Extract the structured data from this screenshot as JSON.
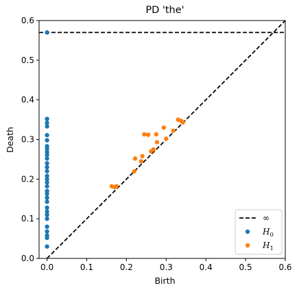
{
  "chart_data": {
    "type": "scatter",
    "title": "PD 'the'",
    "xlabel": "Birth",
    "ylabel": "Death",
    "xlim": [
      -0.02,
      0.6
    ],
    "ylim": [
      0.0,
      0.6
    ],
    "xticks": [
      "0.0",
      "0.1",
      "0.2",
      "0.3",
      "0.4",
      "0.5",
      "0.6"
    ],
    "yticks": [
      "0.0",
      "0.1",
      "0.2",
      "0.3",
      "0.4",
      "0.5",
      "0.6"
    ],
    "infinity_death": 0.57,
    "legend_position": "lower-right",
    "series": [
      {
        "name": "H0",
        "legend_base": "H",
        "legend_sub": "0",
        "color": "#1f77b4",
        "points": [
          [
            0.0,
            0.57
          ],
          [
            0.0,
            0.352
          ],
          [
            0.0,
            0.342
          ],
          [
            0.0,
            0.333
          ],
          [
            0.0,
            0.311
          ],
          [
            0.0,
            0.298
          ],
          [
            0.0,
            0.283
          ],
          [
            0.0,
            0.276
          ],
          [
            0.0,
            0.268
          ],
          [
            0.0,
            0.261
          ],
          [
            0.0,
            0.252
          ],
          [
            0.0,
            0.24
          ],
          [
            0.0,
            0.23
          ],
          [
            0.0,
            0.22
          ],
          [
            0.0,
            0.208
          ],
          [
            0.0,
            0.2
          ],
          [
            0.0,
            0.192
          ],
          [
            0.0,
            0.182
          ],
          [
            0.0,
            0.17
          ],
          [
            0.0,
            0.163
          ],
          [
            0.0,
            0.153
          ],
          [
            0.0,
            0.143
          ],
          [
            0.0,
            0.128
          ],
          [
            0.0,
            0.118
          ],
          [
            0.0,
            0.11
          ],
          [
            0.0,
            0.1
          ],
          [
            0.0,
            0.08
          ],
          [
            0.0,
            0.068
          ],
          [
            0.0,
            0.058
          ],
          [
            0.0,
            0.052
          ],
          [
            0.0,
            0.03
          ]
        ]
      },
      {
        "name": "H1",
        "legend_base": "H",
        "legend_sub": "1",
        "color": "#ff7f0e",
        "points": [
          [
            0.163,
            0.182
          ],
          [
            0.17,
            0.18
          ],
          [
            0.175,
            0.182
          ],
          [
            0.22,
            0.22
          ],
          [
            0.222,
            0.252
          ],
          [
            0.237,
            0.245
          ],
          [
            0.24,
            0.258
          ],
          [
            0.245,
            0.313
          ],
          [
            0.255,
            0.312
          ],
          [
            0.262,
            0.27
          ],
          [
            0.268,
            0.275
          ],
          [
            0.275,
            0.313
          ],
          [
            0.277,
            0.293
          ],
          [
            0.294,
            0.33
          ],
          [
            0.3,
            0.302
          ],
          [
            0.318,
            0.322
          ],
          [
            0.33,
            0.35
          ],
          [
            0.338,
            0.347
          ],
          [
            0.342,
            0.343
          ]
        ]
      }
    ],
    "legend_entries": [
      {
        "label": "∞",
        "kind": "line"
      },
      {
        "label": "H0",
        "kind": "marker",
        "series": 0
      },
      {
        "label": "H1",
        "kind": "marker",
        "series": 1
      }
    ]
  }
}
